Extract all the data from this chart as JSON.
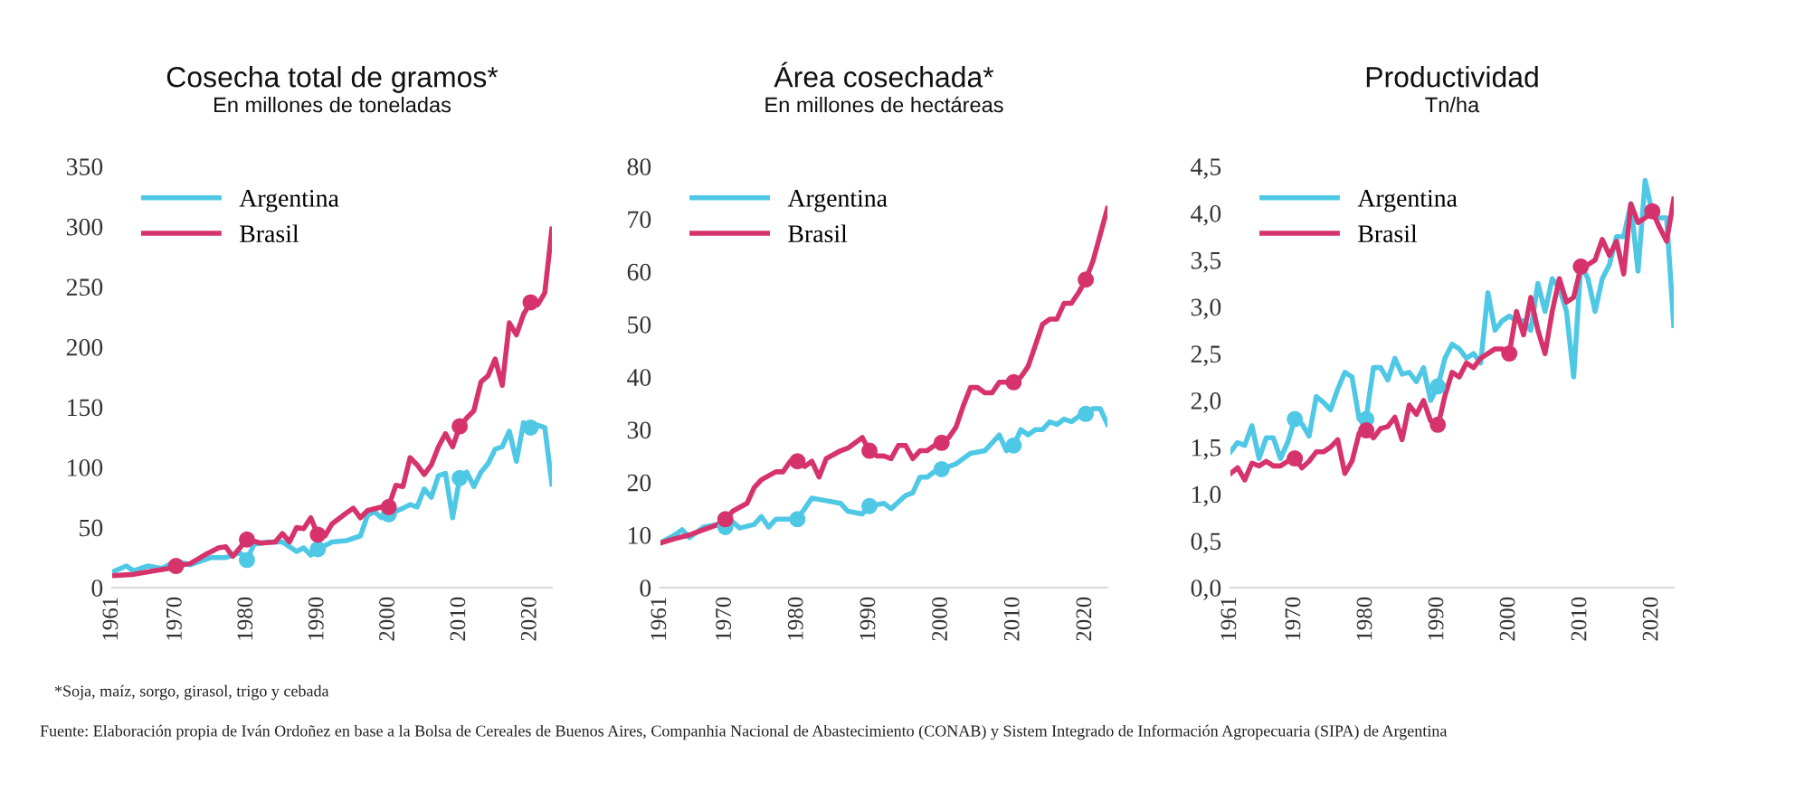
{
  "chart_data": [
    {
      "type": "line",
      "title": "Cosecha total de gramos*",
      "subtitle": "En millones de toneladas",
      "xlim": [
        1961,
        2023
      ],
      "xticks": [
        1961,
        1970,
        1980,
        1990,
        2000,
        2010,
        2020
      ],
      "ylim": [
        0,
        350
      ],
      "yticks": [
        0,
        50,
        100,
        150,
        200,
        250,
        300,
        350
      ],
      "legend": "top left",
      "grid": false,
      "annotations": [
        "*Soja, maíz, sorgo, girasol, trigo y cebada",
        "Fuente: Elaboración propia de Iván Ordoñez en base a la Bolsa de Cereales de Buenos Aires, Companhia Nacional de Abastecimiento (CONAB) y Sistem Integrado de Información Agropecuaria (SIPA) de Argentina"
      ],
      "series": [
        {
          "name": "Argentina",
          "color": "#4fc8e6",
          "x": [
            1961,
            1963,
            1964,
            1966,
            1968,
            1970,
            1972,
            1975,
            1977,
            1979,
            1980,
            1981,
            1983,
            1985,
            1987,
            1988,
            1989,
            1990,
            1992,
            1994,
            1996,
            1997,
            1998,
            1999,
            2000,
            2002,
            2003,
            2004,
            2005,
            2006,
            2007,
            2008,
            2009,
            2010,
            2011,
            2012,
            2013,
            2014,
            2015,
            2016,
            2017,
            2018,
            2019,
            2020,
            2021,
            2022,
            2023
          ],
          "values": [
            13,
            18,
            14,
            18,
            16,
            22,
            19,
            25,
            25,
            29,
            23,
            36,
            38,
            38,
            30,
            33,
            27,
            32,
            38,
            39,
            43,
            60,
            63,
            58,
            61,
            66,
            69,
            67,
            82,
            75,
            93,
            95,
            58,
            91,
            96,
            84,
            96,
            103,
            115,
            117,
            130,
            105,
            137,
            133,
            135,
            133,
            86
          ]
        },
        {
          "name": "Brasil",
          "color": "#d6336c",
          "x": [
            1961,
            1964,
            1967,
            1969,
            1970,
            1972,
            1974,
            1976,
            1977,
            1978,
            1980,
            1982,
            1984,
            1985,
            1986,
            1987,
            1988,
            1989,
            1990,
            1991,
            1992,
            1994,
            1995,
            1996,
            1997,
            1999,
            2000,
            2001,
            2002,
            2003,
            2004,
            2005,
            2006,
            2007,
            2008,
            2009,
            2010,
            2011,
            2012,
            2013,
            2014,
            2015,
            2016,
            2017,
            2018,
            2019,
            2020,
            2021,
            2022,
            2023
          ],
          "values": [
            10,
            11,
            14,
            16,
            18,
            20,
            27,
            33,
            34,
            26,
            40,
            37,
            38,
            45,
            38,
            50,
            49,
            58,
            44,
            43,
            53,
            62,
            66,
            58,
            64,
            67,
            68,
            85,
            84,
            108,
            102,
            94,
            102,
            117,
            128,
            117,
            134,
            141,
            147,
            171,
            176,
            190,
            168,
            220,
            210,
            227,
            237,
            235,
            245,
            298
          ]
        },
        {
          "type": "scatter",
          "color": "#4fc8e6",
          "x": [
            1980,
            1990,
            2000,
            2010,
            2020
          ],
          "values": [
            23,
            32,
            61,
            91,
            133
          ],
          "marker": "circle"
        },
        {
          "type": "scatter",
          "color": "#d6336c",
          "x": [
            1970,
            1980,
            1990,
            2000,
            2010,
            2020
          ],
          "values": [
            18,
            40,
            44,
            67,
            134,
            237
          ],
          "marker": "circle"
        }
      ]
    },
    {
      "type": "line",
      "title": "Área cosechada*",
      "subtitle": "En millones de hectáreas",
      "xlim": [
        1961,
        2023
      ],
      "xticks": [
        1961,
        1970,
        1980,
        1990,
        2000,
        2010,
        2020
      ],
      "ylim": [
        0,
        80
      ],
      "yticks": [
        0,
        10,
        20,
        30,
        40,
        50,
        60,
        70,
        80
      ],
      "legend": "top left",
      "grid": false,
      "series": [
        {
          "name": "Argentina",
          "color": "#4fc8e6",
          "x": [
            1961,
            1963,
            1964,
            1965,
            1967,
            1969,
            1970,
            1971,
            1972,
            1974,
            1975,
            1976,
            1977,
            1979,
            1980,
            1981,
            1982,
            1984,
            1986,
            1987,
            1989,
            1990,
            1992,
            1993,
            1995,
            1996,
            1997,
            1998,
            1999,
            2000,
            2002,
            2004,
            2006,
            2008,
            2009,
            2010,
            2011,
            2012,
            2013,
            2014,
            2015,
            2016,
            2017,
            2018,
            2019,
            2020,
            2021,
            2022,
            2023
          ],
          "values": [
            8.5,
            10,
            11,
            9.5,
            11.5,
            12,
            11.5,
            12.5,
            11.3,
            12,
            13.5,
            11.5,
            13,
            13,
            13,
            15,
            17,
            16.5,
            16,
            14.5,
            14,
            15.5,
            16,
            15,
            17.5,
            18,
            21,
            21,
            22,
            22.5,
            23.5,
            25.5,
            26,
            29,
            26,
            27,
            30,
            29,
            30,
            30,
            31.5,
            31,
            32,
            31.5,
            32.5,
            33,
            34,
            34,
            31
          ]
        },
        {
          "name": "Brasil",
          "color": "#d6336c",
          "x": [
            1961,
            1963,
            1965,
            1967,
            1969,
            1970,
            1971,
            1973,
            1974,
            1975,
            1977,
            1978,
            1979,
            1980,
            1981,
            1982,
            1983,
            1984,
            1986,
            1987,
            1989,
            1990,
            1991,
            1992,
            1993,
            1994,
            1995,
            1996,
            1997,
            1998,
            1999,
            2000,
            2001,
            2002,
            2003,
            2004,
            2005,
            2006,
            2007,
            2008,
            2009,
            2010,
            2011,
            2012,
            2013,
            2014,
            2015,
            2016,
            2017,
            2018,
            2019,
            2020,
            2021,
            2022,
            2023
          ],
          "values": [
            8.5,
            9.3,
            10,
            11,
            12,
            13,
            14.5,
            16,
            19,
            20.5,
            22,
            22,
            24,
            24,
            23,
            24,
            21,
            24.5,
            26,
            26.5,
            28.5,
            26,
            25,
            25,
            24.5,
            27,
            27,
            24.5,
            26,
            26,
            27,
            27.5,
            28.5,
            30.5,
            34.5,
            38,
            38,
            37,
            37,
            39,
            39,
            39,
            40,
            42,
            46,
            50,
            51,
            51,
            54,
            54,
            56,
            58.5,
            62,
            67,
            72
          ]
        },
        {
          "type": "scatter",
          "color": "#4fc8e6",
          "x": [
            1970,
            1980,
            1990,
            2000,
            2010,
            2020
          ],
          "values": [
            11.5,
            13,
            15.5,
            22.5,
            27,
            33
          ],
          "marker": "circle"
        },
        {
          "type": "scatter",
          "color": "#d6336c",
          "x": [
            1970,
            1980,
            1990,
            2000,
            2010,
            2020
          ],
          "values": [
            13,
            24,
            26,
            27.5,
            39,
            58.5
          ],
          "marker": "circle"
        }
      ]
    },
    {
      "type": "line",
      "title": "Productividad",
      "subtitle": "Tn/ha",
      "xlim": [
        1961,
        2023
      ],
      "xticks": [
        1961,
        1970,
        1980,
        1990,
        2000,
        2010,
        2020
      ],
      "ylim": [
        0,
        4.5
      ],
      "yticks": [
        {
          "value": 0,
          "label": "0,0"
        },
        {
          "value": 0.5,
          "label": "0,5"
        },
        {
          "value": 1,
          "label": "1,0"
        },
        {
          "value": 1.5,
          "label": "1,5"
        },
        {
          "value": 2,
          "label": "2,0"
        },
        {
          "value": 2.5,
          "label": "2,5"
        },
        {
          "value": 3,
          "label": "3,0"
        },
        {
          "value": 3.5,
          "label": "3,5"
        },
        {
          "value": 4,
          "label": "4,0"
        },
        {
          "value": 4.5,
          "label": "4,5"
        }
      ],
      "legend": "top left",
      "grid": false,
      "series": [
        {
          "name": "Argentina",
          "color": "#4fc8e6",
          "x": [
            1961,
            1962,
            1963,
            1964,
            1965,
            1966,
            1967,
            1968,
            1969,
            1970,
            1971,
            1972,
            1973,
            1974,
            1975,
            1976,
            1977,
            1978,
            1979,
            1980,
            1981,
            1982,
            1983,
            1984,
            1985,
            1986,
            1987,
            1988,
            1989,
            1990,
            1991,
            1992,
            1993,
            1994,
            1995,
            1996,
            1997,
            1998,
            1999,
            2000,
            2001,
            2002,
            2003,
            2004,
            2005,
            2006,
            2007,
            2008,
            2009,
            2010,
            2011,
            2012,
            2013,
            2014,
            2015,
            2016,
            2017,
            2018,
            2019,
            2020,
            2021,
            2022,
            2023
          ],
          "values": [
            1.45,
            1.55,
            1.52,
            1.73,
            1.38,
            1.6,
            1.6,
            1.38,
            1.55,
            1.8,
            1.75,
            1.62,
            2.04,
            1.98,
            1.9,
            2.12,
            2.3,
            2.25,
            1.8,
            1.82,
            2.35,
            2.35,
            2.22,
            2.45,
            2.28,
            2.3,
            2.2,
            2.35,
            2.0,
            2.15,
            2.45,
            2.6,
            2.55,
            2.45,
            2.5,
            2.4,
            3.15,
            2.75,
            2.85,
            2.9,
            2.85,
            2.85,
            2.75,
            3.25,
            2.95,
            3.3,
            3.2,
            2.95,
            2.25,
            3.45,
            3.3,
            2.95,
            3.3,
            3.45,
            3.75,
            3.75,
            4.1,
            3.38,
            4.35,
            4.0,
            3.95,
            3.95,
            2.8
          ]
        },
        {
          "name": "Brasil",
          "color": "#d6336c",
          "x": [
            1961,
            1962,
            1963,
            1964,
            1965,
            1966,
            1967,
            1968,
            1969,
            1970,
            1971,
            1972,
            1973,
            1974,
            1975,
            1976,
            1977,
            1978,
            1979,
            1980,
            1981,
            1982,
            1983,
            1984,
            1985,
            1986,
            1987,
            1988,
            1989,
            1990,
            1991,
            1992,
            1993,
            1994,
            1995,
            1996,
            1997,
            1998,
            1999,
            2000,
            2001,
            2002,
            2003,
            2004,
            2005,
            2006,
            2007,
            2008,
            2009,
            2010,
            2011,
            2012,
            2013,
            2014,
            2015,
            2016,
            2017,
            2018,
            2019,
            2020,
            2021,
            2022,
            2023
          ],
          "values": [
            1.22,
            1.28,
            1.15,
            1.33,
            1.3,
            1.35,
            1.3,
            1.3,
            1.35,
            1.38,
            1.28,
            1.35,
            1.45,
            1.45,
            1.5,
            1.58,
            1.22,
            1.35,
            1.65,
            1.68,
            1.6,
            1.7,
            1.72,
            1.82,
            1.58,
            1.95,
            1.85,
            2.0,
            1.78,
            1.72,
            2.05,
            2.3,
            2.25,
            2.4,
            2.35,
            2.45,
            2.5,
            2.55,
            2.55,
            2.5,
            2.95,
            2.7,
            3.1,
            2.75,
            2.5,
            2.95,
            3.3,
            3.05,
            3.1,
            3.42,
            3.45,
            3.5,
            3.72,
            3.55,
            3.7,
            3.35,
            4.1,
            3.9,
            3.95,
            4.02,
            3.85,
            3.7,
            4.15
          ]
        },
        {
          "type": "scatter",
          "color": "#4fc8e6",
          "x": [
            1970,
            1980,
            1990
          ],
          "values": [
            1.8,
            1.8,
            2.15
          ],
          "marker": "circle"
        },
        {
          "type": "scatter",
          "color": "#d6336c",
          "x": [
            1970,
            1980,
            1990,
            2000,
            2010,
            2020
          ],
          "values": [
            1.38,
            1.68,
            1.74,
            2.5,
            3.43,
            4.02
          ],
          "marker": "circle"
        }
      ]
    }
  ]
}
